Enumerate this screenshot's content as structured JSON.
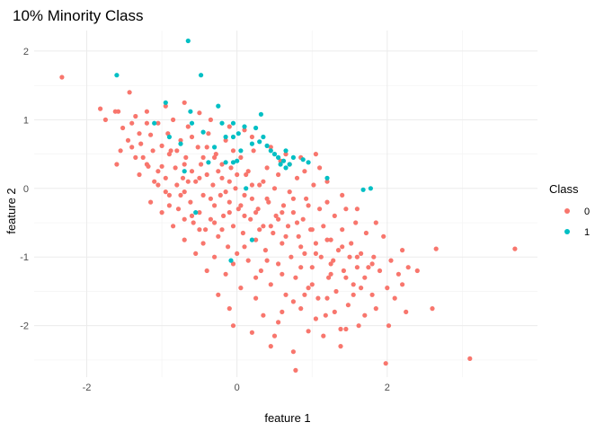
{
  "chart_data": {
    "type": "scatter",
    "title": "10% Minority Class",
    "xlabel": "feature 1",
    "ylabel": "feature 2",
    "xlim": [
      -2.7,
      4.0
    ],
    "ylim": [
      -2.75,
      2.3
    ],
    "xticks": [
      -2,
      0,
      2
    ],
    "yticks": [
      -2,
      -1,
      0,
      1,
      2
    ],
    "x_minor_gridlines": [
      -3,
      -1,
      1,
      3
    ],
    "y_minor_gridlines": [
      -2.5,
      -1.5,
      -0.5,
      0.5,
      1.5
    ],
    "grid": true,
    "legend": {
      "title": "Class",
      "position": "right"
    },
    "series": [
      {
        "name": "0",
        "color": "#F8766D",
        "points": [
          [
            -2.33,
            1.62
          ],
          [
            -1.82,
            1.16
          ],
          [
            -1.75,
            1.0
          ],
          [
            -1.62,
            1.12
          ],
          [
            -1.58,
            1.12
          ],
          [
            -1.52,
            0.88
          ],
          [
            -1.55,
            0.55
          ],
          [
            -1.43,
            1.4
          ],
          [
            -1.4,
            0.95
          ],
          [
            -1.35,
            1.05
          ],
          [
            -1.3,
            0.8
          ],
          [
            -1.28,
            0.65
          ],
          [
            -1.25,
            0.45
          ],
          [
            -1.2,
            1.12
          ],
          [
            -1.18,
            0.32
          ],
          [
            -1.15,
            0.78
          ],
          [
            -1.12,
            0.55
          ],
          [
            -1.1,
            0.1
          ],
          [
            -1.05,
            0.95
          ],
          [
            -1.0,
            0.62
          ],
          [
            -1.0,
            0.32
          ],
          [
            -0.95,
            0.15
          ],
          [
            -0.92,
            0.8
          ],
          [
            -0.9,
            -0.1
          ],
          [
            -0.88,
            0.55
          ],
          [
            -0.85,
            1.0
          ],
          [
            -0.82,
            0.3
          ],
          [
            -0.8,
            0.05
          ],
          [
            -0.78,
            -0.3
          ],
          [
            -0.75,
            0.7
          ],
          [
            -0.72,
            0.15
          ],
          [
            -0.7,
            -0.05
          ],
          [
            -0.68,
            0.45
          ],
          [
            -0.65,
            0.9
          ],
          [
            -0.62,
            -0.2
          ],
          [
            -0.6,
            0.25
          ],
          [
            -0.58,
            -0.5
          ],
          [
            -0.55,
            0.1
          ],
          [
            -0.52,
            0.6
          ],
          [
            -0.5,
            -0.35
          ],
          [
            -0.48,
            0.35
          ],
          [
            -0.45,
            -0.1
          ],
          [
            -0.42,
            -0.6
          ],
          [
            -0.4,
            0.2
          ],
          [
            -0.38,
            0.8
          ],
          [
            -0.35,
            -0.45
          ],
          [
            -0.32,
            0.05
          ],
          [
            -0.3,
            -0.25
          ],
          [
            -0.28,
            0.5
          ],
          [
            -0.25,
            -0.7
          ],
          [
            -0.22,
            -0.1
          ],
          [
            -0.2,
            0.15
          ],
          [
            -0.18,
            -0.4
          ],
          [
            -0.15,
            0.7
          ],
          [
            -0.12,
            -0.85
          ],
          [
            -0.1,
            -0.2
          ],
          [
            -0.08,
            0.3
          ],
          [
            -0.05,
            -0.55
          ],
          [
            -0.02,
            0.0
          ],
          [
            0.0,
            -0.95
          ],
          [
            0.02,
            -0.3
          ],
          [
            0.05,
            0.45
          ],
          [
            0.08,
            -0.65
          ],
          [
            0.1,
            -0.1
          ],
          [
            0.12,
            0.2
          ],
          [
            0.15,
            -1.05
          ],
          [
            0.18,
            -0.45
          ],
          [
            0.2,
            -0.15
          ],
          [
            0.22,
            0.55
          ],
          [
            0.25,
            -0.75
          ],
          [
            0.28,
            -0.3
          ],
          [
            0.3,
            0.05
          ],
          [
            0.32,
            -1.2
          ],
          [
            0.35,
            -0.55
          ],
          [
            0.38,
            -0.9
          ],
          [
            0.4,
            0.3
          ],
          [
            0.42,
            -0.2
          ],
          [
            0.45,
            -1.4
          ],
          [
            0.48,
            -0.65
          ],
          [
            0.5,
            0.0
          ],
          [
            0.52,
            -0.4
          ],
          [
            0.55,
            -1.1
          ],
          [
            0.58,
            0.4
          ],
          [
            0.6,
            -0.8
          ],
          [
            0.62,
            -0.25
          ],
          [
            0.65,
            -1.55
          ],
          [
            0.68,
            -0.55
          ],
          [
            0.7,
            -0.05
          ],
          [
            0.72,
            -1.0
          ],
          [
            0.75,
            -0.35
          ],
          [
            0.78,
            -1.3
          ],
          [
            0.8,
            0.15
          ],
          [
            0.82,
            -0.7
          ],
          [
            0.85,
            -1.75
          ],
          [
            0.88,
            -0.45
          ],
          [
            0.9,
            -0.95
          ],
          [
            0.92,
            -0.15
          ],
          [
            0.95,
            -1.45
          ],
          [
            0.98,
            -0.6
          ],
          [
            1.0,
            -1.15
          ],
          [
            1.02,
            0.05
          ],
          [
            1.05,
            -0.8
          ],
          [
            1.08,
            -1.6
          ],
          [
            1.1,
            -0.3
          ],
          [
            1.12,
            -1.0
          ],
          [
            1.15,
            -0.55
          ],
          [
            1.18,
            -1.85
          ],
          [
            1.2,
            -0.2
          ],
          [
            1.22,
            -1.3
          ],
          [
            1.25,
            -0.75
          ],
          [
            1.28,
            -1.05
          ],
          [
            1.3,
            -0.4
          ],
          [
            1.32,
            -1.5
          ],
          [
            1.35,
            -0.9
          ],
          [
            1.38,
            -2.05
          ],
          [
            1.4,
            -0.6
          ],
          [
            1.42,
            -1.2
          ],
          [
            1.45,
            -0.3
          ],
          [
            1.48,
            -1.7
          ],
          [
            1.5,
            -1.0
          ],
          [
            1.52,
            -0.8
          ],
          [
            1.55,
            -1.4
          ],
          [
            1.58,
            -0.5
          ],
          [
            1.6,
            -1.15
          ],
          [
            1.62,
            -2.0
          ],
          [
            1.65,
            -0.95
          ],
          [
            1.7,
            -1.3
          ],
          [
            1.72,
            -0.65
          ],
          [
            1.75,
            -1.15
          ],
          [
            1.8,
            -1.55
          ],
          [
            1.82,
            -1.0
          ],
          [
            1.85,
            -1.75
          ],
          [
            1.9,
            -1.2
          ],
          [
            1.95,
            -0.7
          ],
          [
            2.0,
            -1.45
          ],
          [
            2.02,
            -2.0
          ],
          [
            2.05,
            -1.05
          ],
          [
            2.1,
            -1.6
          ],
          [
            2.15,
            -1.25
          ],
          [
            2.2,
            -1.4
          ],
          [
            2.25,
            -1.8
          ],
          [
            2.28,
            -1.15
          ],
          [
            2.4,
            -1.2
          ],
          [
            2.2,
            -0.9
          ],
          [
            2.6,
            -1.75
          ],
          [
            2.65,
            -0.88
          ],
          [
            3.1,
            -2.48
          ],
          [
            3.7,
            -0.88
          ],
          [
            1.98,
            -2.55
          ],
          [
            0.78,
            -2.65
          ],
          [
            0.75,
            -2.38
          ],
          [
            0.45,
            -2.3
          ],
          [
            -0.05,
            -2.0
          ],
          [
            0.2,
            -2.1
          ],
          [
            0.5,
            -2.15
          ],
          [
            0.95,
            -2.08
          ],
          [
            1.15,
            -2.15
          ],
          [
            1.38,
            -2.3
          ],
          [
            0.35,
            -1.85
          ],
          [
            0.55,
            -1.95
          ],
          [
            0.75,
            -1.65
          ],
          [
            1.05,
            -1.9
          ],
          [
            -0.25,
            -1.55
          ],
          [
            -0.1,
            -1.75
          ],
          [
            0.05,
            -1.45
          ],
          [
            0.25,
            -1.6
          ],
          [
            -0.4,
            -1.2
          ],
          [
            -0.55,
            -0.95
          ],
          [
            -0.7,
            -0.75
          ],
          [
            -0.85,
            -0.55
          ],
          [
            -1.0,
            -0.35
          ],
          [
            -1.15,
            -0.2
          ],
          [
            -0.3,
            -1.0
          ],
          [
            -0.15,
            -1.25
          ],
          [
            -0.6,
            -0.4
          ],
          [
            -0.75,
            -0.1
          ],
          [
            -0.45,
            -0.8
          ],
          [
            -0.2,
            -0.6
          ],
          [
            -0.05,
            -1.1
          ],
          [
            0.1,
            -0.85
          ],
          [
            0.25,
            -1.3
          ],
          [
            0.4,
            -1.05
          ],
          [
            0.6,
            -1.25
          ],
          [
            0.85,
            -1.15
          ],
          [
            1.0,
            -1.4
          ],
          [
            1.2,
            -1.6
          ],
          [
            -0.9,
            0.5
          ],
          [
            -1.05,
            0.25
          ],
          [
            -0.7,
            0.35
          ],
          [
            -0.5,
            0.15
          ],
          [
            -0.3,
            0.45
          ],
          [
            -0.1,
            0.1
          ],
          [
            0.15,
            0.25
          ],
          [
            0.35,
            0.1
          ],
          [
            0.55,
            0.2
          ],
          [
            0.7,
            0.35
          ],
          [
            0.9,
            0.25
          ],
          [
            1.1,
            0.3
          ],
          [
            -1.3,
            0.2
          ],
          [
            -0.95,
            -0.05
          ],
          [
            -0.8,
            0.55
          ],
          [
            -0.65,
            0.1
          ],
          [
            -0.45,
            0.45
          ],
          [
            -0.25,
            0.25
          ],
          [
            -0.05,
            0.55
          ],
          [
            0.2,
            0.75
          ],
          [
            0.45,
            0.6
          ],
          [
            0.65,
            0.5
          ],
          [
            0.85,
            0.45
          ],
          [
            1.05,
            0.5
          ],
          [
            -1.2,
            0.95
          ],
          [
            -0.95,
            1.2
          ],
          [
            -0.7,
            1.25
          ],
          [
            -0.5,
            1.1
          ],
          [
            -0.35,
            1.0
          ],
          [
            -0.1,
            0.9
          ],
          [
            0.1,
            0.85
          ],
          [
            -1.45,
            0.7
          ],
          [
            -1.6,
            0.35
          ],
          [
            -1.35,
            0.45
          ],
          [
            0.6,
            -1.8
          ],
          [
            0.9,
            -1.55
          ],
          [
            1.3,
            -1.8
          ],
          [
            1.45,
            -2.05
          ],
          [
            1.7,
            -1.85
          ],
          [
            1.55,
            -1.55
          ],
          [
            1.25,
            -1.25
          ],
          [
            1.85,
            -0.5
          ],
          [
            1.6,
            -0.3
          ],
          [
            1.4,
            -0.1
          ],
          [
            1.2,
            0.1
          ],
          [
            0.95,
            -0.25
          ],
          [
            0.75,
            -0.15
          ],
          [
            0.55,
            -0.45
          ],
          [
            0.3,
            -0.6
          ],
          [
            0.1,
            -0.4
          ],
          [
            -0.1,
            -0.35
          ],
          [
            -0.3,
            -0.5
          ],
          [
            -0.5,
            -0.6
          ],
          [
            -0.7,
            -0.45
          ],
          [
            -0.9,
            -0.25
          ],
          [
            -1.05,
            0.05
          ],
          [
            -1.2,
            0.35
          ],
          [
            -1.4,
            0.6
          ],
          [
            -0.6,
            0.75
          ],
          [
            -0.4,
            0.6
          ],
          [
            -0.2,
            0.35
          ],
          [
            0.0,
            0.2
          ],
          [
            0.2,
            0.05
          ],
          [
            0.4,
            -0.15
          ],
          [
            0.6,
            -0.35
          ],
          [
            0.8,
            -0.5
          ],
          [
            1.0,
            -0.6
          ],
          [
            1.2,
            -0.75
          ],
          [
            1.4,
            -0.85
          ],
          [
            1.6,
            -1.0
          ],
          [
            1.8,
            -1.1
          ],
          [
            -0.35,
            -0.15
          ],
          [
            -0.15,
            -0.05
          ],
          [
            0.05,
            -0.25
          ],
          [
            0.25,
            -0.35
          ],
          [
            0.45,
            -0.55
          ],
          [
            0.65,
            -0.7
          ],
          [
            0.85,
            -0.85
          ],
          [
            1.05,
            -0.95
          ],
          [
            1.25,
            -1.1
          ],
          [
            1.45,
            -1.3
          ],
          [
            1.65,
            -1.45
          ]
        ]
      },
      {
        "name": "1",
        "color": "#00BFC4",
        "points": [
          [
            -0.65,
            2.15
          ],
          [
            -1.6,
            1.65
          ],
          [
            -0.48,
            1.65
          ],
          [
            -0.95,
            1.25
          ],
          [
            -0.62,
            1.12
          ],
          [
            -0.6,
            0.95
          ],
          [
            -0.25,
            1.2
          ],
          [
            -1.1,
            0.95
          ],
          [
            -0.9,
            0.75
          ],
          [
            -0.75,
            0.65
          ],
          [
            -0.45,
            0.82
          ],
          [
            -0.3,
            0.6
          ],
          [
            -0.2,
            0.95
          ],
          [
            -0.15,
            0.75
          ],
          [
            -0.05,
            0.95
          ],
          [
            0.02,
            0.8
          ],
          [
            0.05,
            0.55
          ],
          [
            0.1,
            0.9
          ],
          [
            0.2,
            0.65
          ],
          [
            0.25,
            0.88
          ],
          [
            0.32,
            1.08
          ],
          [
            0.35,
            0.75
          ],
          [
            0.4,
            0.62
          ],
          [
            0.45,
            0.55
          ],
          [
            0.5,
            0.5
          ],
          [
            0.55,
            0.45
          ],
          [
            0.58,
            0.35
          ],
          [
            0.62,
            0.4
          ],
          [
            0.65,
            0.3
          ],
          [
            0.7,
            0.35
          ],
          [
            0.75,
            0.45
          ],
          [
            0.88,
            0.42
          ],
          [
            0.95,
            0.38
          ],
          [
            0.65,
            0.55
          ],
          [
            0.3,
            0.68
          ],
          [
            -0.15,
            0.38
          ],
          [
            0.0,
            0.4
          ],
          [
            -0.05,
            0.38
          ],
          [
            -0.05,
            0.75
          ],
          [
            -0.38,
            0.38
          ],
          [
            -0.7,
            0.25
          ],
          [
            0.12,
            0.0
          ],
          [
            1.2,
            0.15
          ],
          [
            1.68,
            -0.02
          ],
          [
            1.78,
            0.0
          ],
          [
            0.2,
            -0.75
          ],
          [
            -0.08,
            -1.05
          ],
          [
            -0.55,
            -0.35
          ]
        ]
      }
    ]
  }
}
